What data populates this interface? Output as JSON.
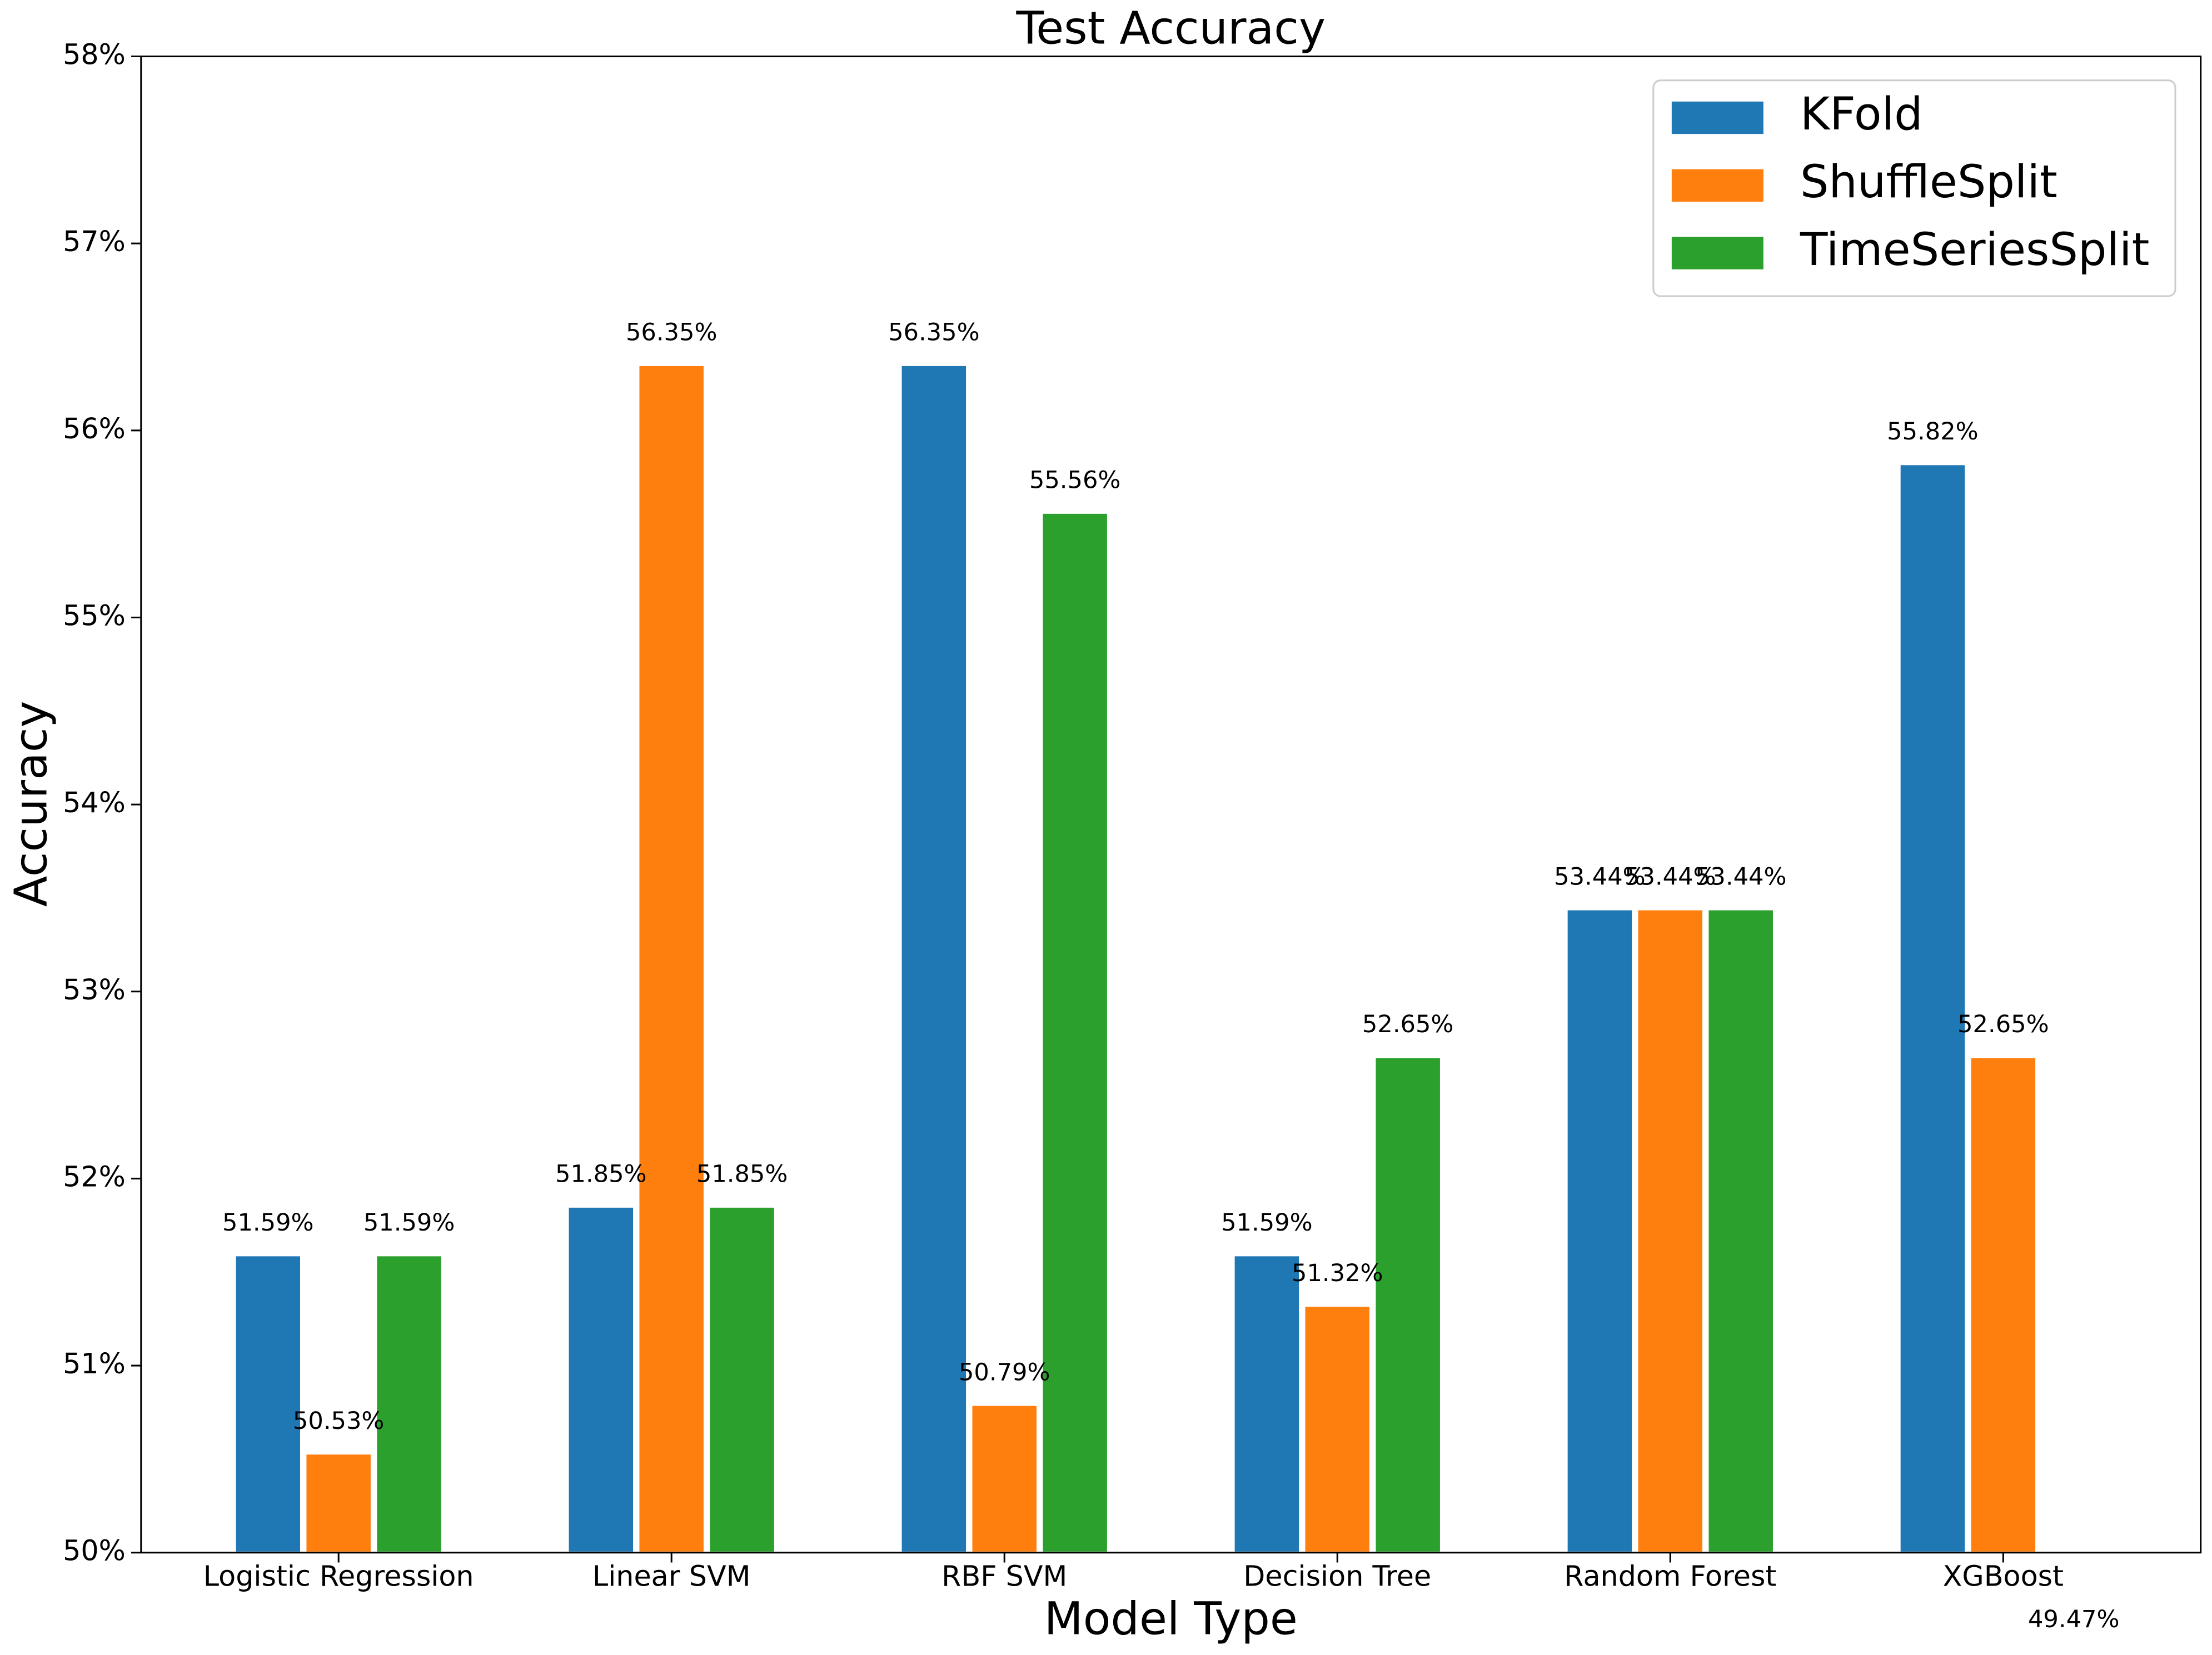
{
  "chart_data": {
    "type": "bar",
    "title": "Test Accuracy",
    "x_label": "Model Type",
    "y_label": "Accuracy",
    "categories": [
      "Logistic Regression",
      "Linear SVM",
      "RBF SVM",
      "Decision Tree",
      "Random Forest",
      "XGBoost"
    ],
    "series": [
      {
        "name": "KFold",
        "color": "#1f77b4",
        "values": [
          51.59,
          51.85,
          56.35,
          51.59,
          53.44,
          55.82
        ],
        "value_labels": [
          "51.59%",
          "51.85%",
          "56.35%",
          "51.59%",
          "53.44%",
          "55.82%"
        ]
      },
      {
        "name": "ShuffleSplit",
        "color": "#ff7f0e",
        "values": [
          50.53,
          56.35,
          50.79,
          51.32,
          53.44,
          52.65
        ],
        "value_labels": [
          "50.53%",
          "56.35%",
          "50.79%",
          "51.32%",
          "53.44%",
          "52.65%"
        ]
      },
      {
        "name": "TimeSeriesSplit",
        "color": "#2ca02c",
        "values": [
          51.59,
          51.85,
          55.56,
          52.65,
          53.44,
          49.47
        ],
        "value_labels": [
          "51.59%",
          "51.85%",
          "55.56%",
          "52.65%",
          "53.44%",
          "49.47%"
        ]
      }
    ],
    "ylim": [
      50,
      58
    ],
    "yticks": [
      {
        "value": 50,
        "label": "50%"
      },
      {
        "value": 51,
        "label": "51%"
      },
      {
        "value": 52,
        "label": "52%"
      },
      {
        "value": 53,
        "label": "53%"
      },
      {
        "value": 54,
        "label": "54%"
      },
      {
        "value": 55,
        "label": "55%"
      },
      {
        "value": 56,
        "label": "56%"
      },
      {
        "value": 57,
        "label": "57%"
      },
      {
        "value": 58,
        "label": "58%"
      }
    ],
    "legend": "upper right",
    "grid": false
  }
}
